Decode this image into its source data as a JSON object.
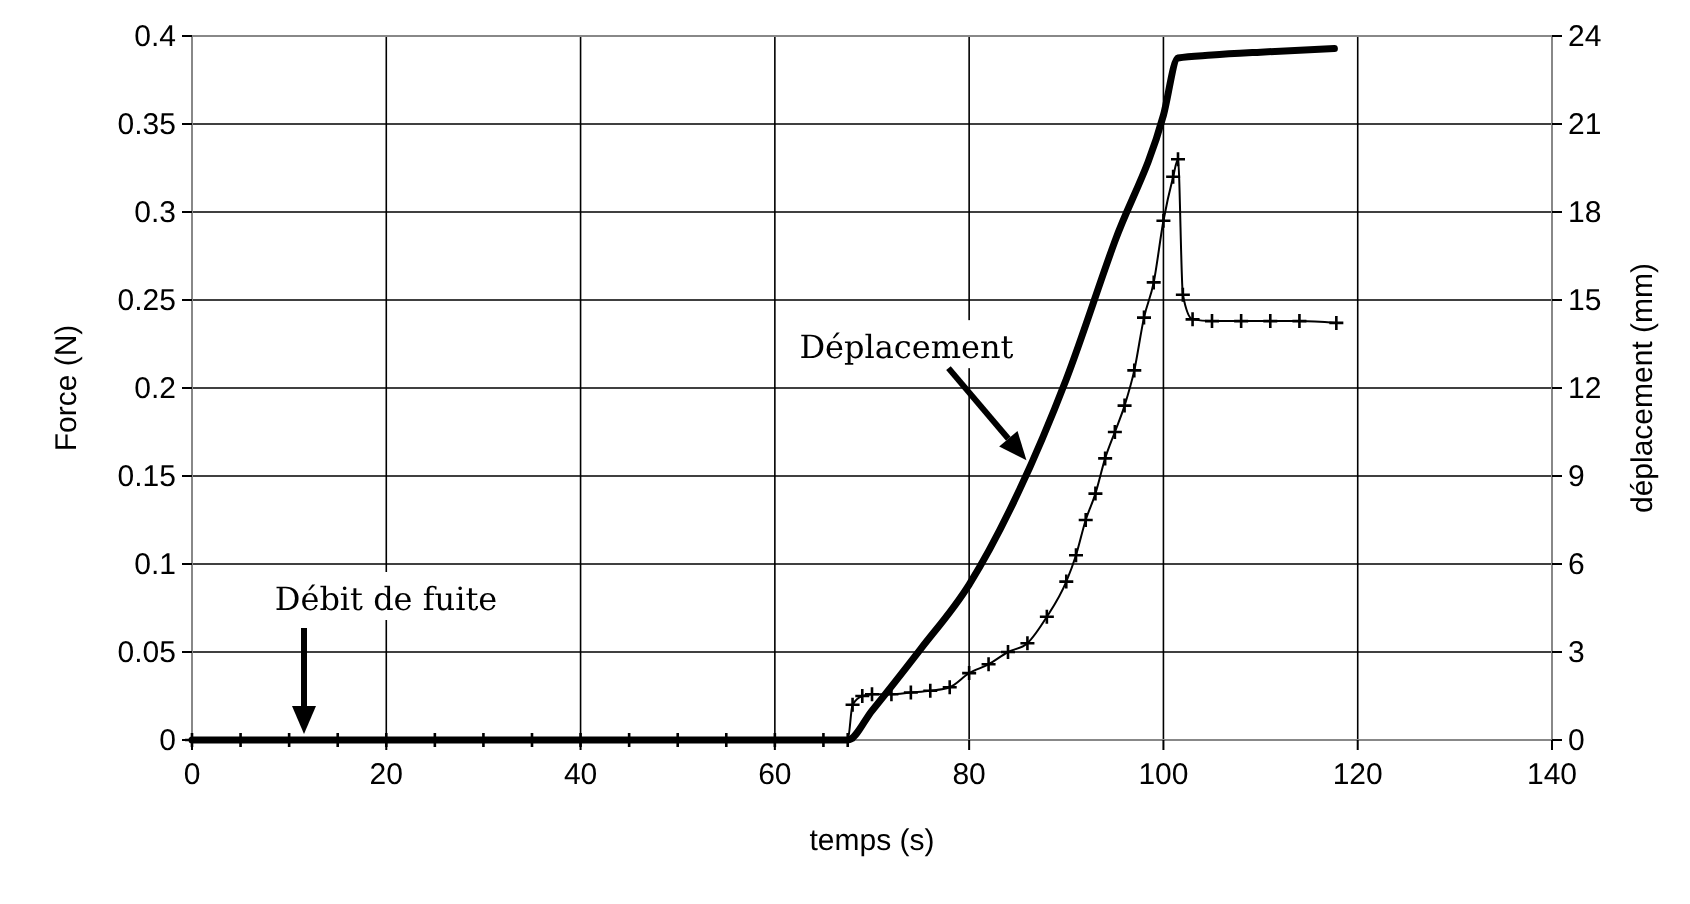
{
  "chart_data": {
    "type": "line",
    "xlabel": "temps (s)",
    "ylabel": "Force (N)",
    "y2label": "déplacement (mm)",
    "xlim": [
      0,
      140
    ],
    "xticks": [
      0,
      20,
      40,
      60,
      80,
      100,
      120,
      140
    ],
    "ylim": [
      0,
      0.4
    ],
    "yticks": [
      0,
      0.05,
      0.1,
      0.15,
      0.2,
      0.25,
      0.3,
      0.35,
      0.4
    ],
    "y2lim": [
      0,
      24
    ],
    "y2ticks": [
      0,
      3,
      6,
      9,
      12,
      15,
      18,
      21,
      24
    ],
    "grid": true,
    "series": [
      {
        "color": "#000000",
        "marker": "cross",
        "x": [
          0,
          5,
          10,
          15,
          20,
          25,
          30,
          35,
          40,
          45,
          50,
          55,
          60,
          65,
          67.5,
          68,
          69,
          70,
          72,
          74,
          76,
          78,
          80,
          82,
          84,
          86,
          88,
          90,
          91,
          92,
          93,
          94,
          95,
          96,
          97,
          98,
          99,
          100,
          101,
          101.5,
          102,
          103,
          105,
          108,
          111,
          114,
          117.8
        ],
        "values": [
          0,
          0,
          0,
          0,
          0,
          0,
          0,
          0,
          0,
          0,
          0,
          0,
          0,
          0,
          0,
          0.02,
          0.025,
          0.026,
          0.026,
          0.027,
          0.028,
          0.03,
          0.038,
          0.043,
          0.05,
          0.055,
          0.07,
          0.09,
          0.105,
          0.125,
          0.14,
          0.16,
          0.175,
          0.19,
          0.21,
          0.24,
          0.26,
          0.295,
          0.32,
          0.33,
          0.253,
          0.239,
          0.238,
          0.238,
          0.238,
          0.238,
          0.237
        ]
      },
      {
        "color": "#000000",
        "marker": "none",
        "axis": "y2",
        "x": [
          0,
          67.5,
          70,
          75,
          80,
          85,
          90,
          95,
          100,
          101.5,
          105,
          110,
          117.6
        ],
        "values": [
          0,
          0,
          1.0,
          3.1,
          5.3,
          8.4,
          12.3,
          17.0,
          21.3,
          23.25,
          23.35,
          23.45,
          23.57
        ]
      }
    ],
    "annotations": [
      {
        "text": "Déplacement",
        "x": 85.9,
        "y": 0.159
      },
      "Débit de fuite"
    ]
  }
}
